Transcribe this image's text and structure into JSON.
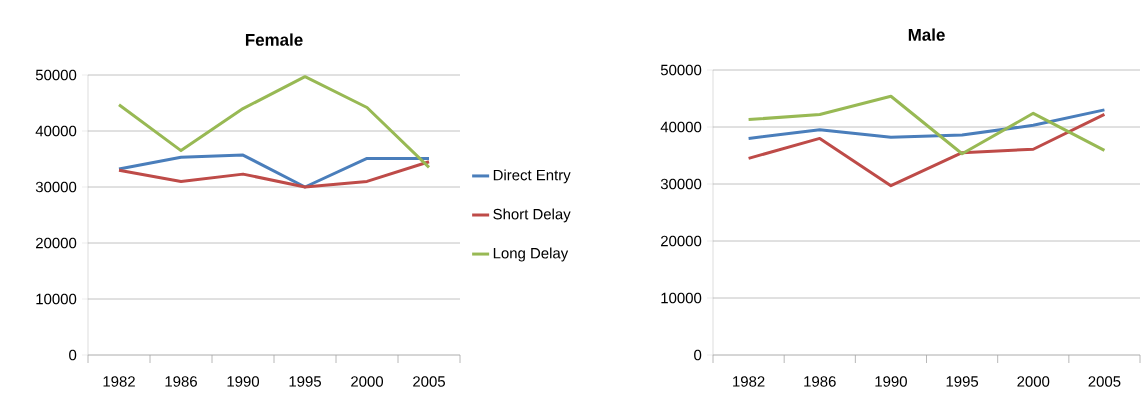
{
  "chart_data": [
    {
      "type": "line",
      "title": "Female",
      "categories": [
        "1982",
        "1986",
        "1990",
        "1995",
        "2000",
        "2005"
      ],
      "ylim": [
        0,
        50000
      ],
      "yticks": [
        0,
        10000,
        20000,
        30000,
        40000,
        50000
      ],
      "grid": "y",
      "legend": "right",
      "series": [
        {
          "name": "Direct Entry",
          "color": "#4a7ebb",
          "values": [
            33200,
            35300,
            35700,
            30000,
            35100,
            35100
          ]
        },
        {
          "name": "Short Delay",
          "color": "#be4b48",
          "values": [
            33000,
            31000,
            32300,
            30000,
            31000,
            34500
          ]
        },
        {
          "name": "Long Delay",
          "color": "#98b954",
          "values": [
            44700,
            36500,
            44000,
            49700,
            44200,
            33500
          ]
        }
      ]
    },
    {
      "type": "line",
      "title": "Male",
      "categories": [
        "1982",
        "1986",
        "1990",
        "1995",
        "2000",
        "2005"
      ],
      "ylim": [
        0,
        50000
      ],
      "yticks": [
        0,
        10000,
        20000,
        30000,
        40000,
        50000
      ],
      "grid": "y",
      "series": [
        {
          "color": "#4a7ebb",
          "values": [
            38000,
            39500,
            38200,
            38600,
            40300,
            43000
          ]
        },
        {
          "color": "#be4b48",
          "values": [
            34500,
            38000,
            29700,
            35500,
            36100,
            42200
          ]
        },
        {
          "color": "#98b954",
          "values": [
            41300,
            42200,
            45400,
            35300,
            42400,
            35900
          ]
        }
      ]
    }
  ]
}
